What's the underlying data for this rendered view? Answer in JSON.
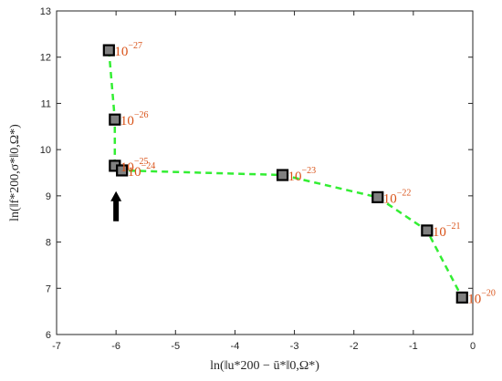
{
  "chart_data": {
    "type": "line",
    "title": "",
    "xlabel": "ln(‖u*200 − ū*‖0,Ω*)",
    "ylabel": "ln(‖f*200,σ*‖0,Ω*)",
    "xlim": [
      -7,
      0
    ],
    "ylim": [
      6,
      13
    ],
    "x_ticks": [
      "-7",
      "-6",
      "-5",
      "-4",
      "-3",
      "-2",
      "-1",
      "0"
    ],
    "y_ticks": [
      "6",
      "7",
      "8",
      "9",
      "10",
      "11",
      "12",
      "13"
    ],
    "grid": false,
    "line_style": "dashed",
    "line_color": "#33ee33",
    "marker": "square",
    "marker_fill": "#808080",
    "marker_edge": "#000000",
    "label_color": "#d95319",
    "points": [
      {
        "x": -6.12,
        "y": 12.15,
        "label_base": "10",
        "label_exp": "−27"
      },
      {
        "x": -6.02,
        "y": 10.65,
        "label_base": "10",
        "label_exp": "−26"
      },
      {
        "x": -6.02,
        "y": 9.65,
        "label_base": "10",
        "label_exp": "−25"
      },
      {
        "x": -5.9,
        "y": 9.55,
        "label_base": "10",
        "label_exp": "−24"
      },
      {
        "x": -3.2,
        "y": 9.45,
        "label_base": "10",
        "label_exp": "−23"
      },
      {
        "x": -1.6,
        "y": 8.97,
        "label_base": "10",
        "label_exp": "−22"
      },
      {
        "x": -0.77,
        "y": 8.25,
        "label_base": "10",
        "label_exp": "−21"
      },
      {
        "x": -0.18,
        "y": 6.8,
        "label_base": "10",
        "label_exp": "−20"
      }
    ],
    "arrow": {
      "x": -6.0,
      "y_from": 8.45,
      "y_to": 9.1,
      "direction": "up",
      "color": "#000000"
    }
  }
}
